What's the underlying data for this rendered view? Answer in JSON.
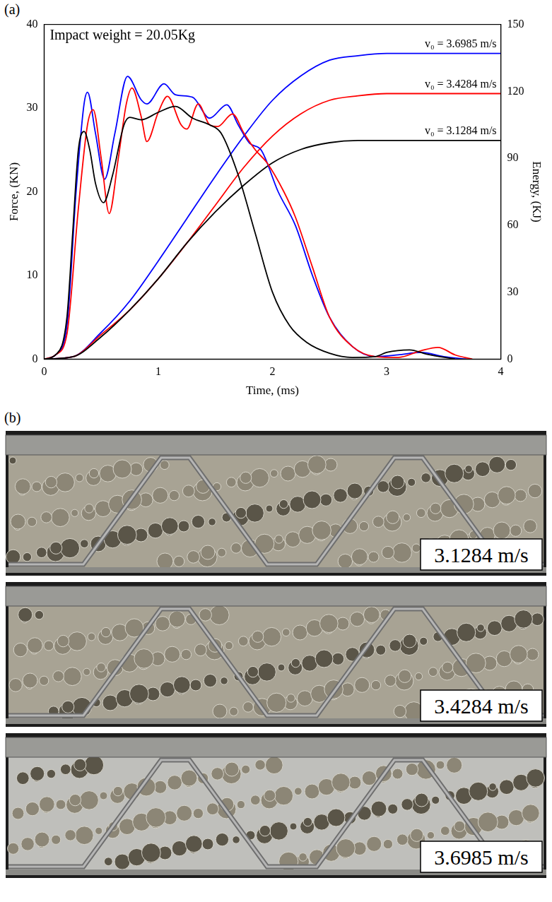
{
  "panel_labels": [
    "(a)",
    "(b)"
  ],
  "chart_data": {
    "type": "line",
    "annotations": [
      "Impact weight = 20.05Kg"
    ],
    "x_label": "Time, (ms)",
    "y_label": "Force, (KN)",
    "y2_label": "Energy, (KJ)",
    "xlim": [
      0,
      4
    ],
    "xticks": [
      0,
      1,
      2,
      3,
      4
    ],
    "ylim": [
      0,
      40
    ],
    "yticks": [
      0,
      10,
      20,
      30,
      40
    ],
    "y2lim": [
      0,
      150
    ],
    "y2ticks": [
      0,
      30,
      60,
      90,
      120,
      150
    ],
    "grid": false,
    "series": [
      {
        "color": "#000000",
        "axis": "y",
        "x": [
          0,
          0.1,
          0.2,
          0.25,
          0.3,
          0.35,
          0.4,
          0.45,
          0.52,
          0.6,
          0.7,
          0.75,
          0.85,
          1.0,
          1.15,
          1.3,
          1.45,
          1.55,
          1.7,
          1.85,
          2.0,
          2.15,
          2.3,
          2.5,
          2.7,
          2.9,
          3.0,
          3.2,
          3.35,
          3.6
        ],
        "values": [
          0,
          0.5,
          5,
          15,
          25,
          27.2,
          25,
          21,
          18.7,
          22,
          28,
          28.9,
          28.6,
          29.5,
          30.2,
          28.8,
          28,
          27,
          22,
          15,
          8,
          4,
          2,
          0.7,
          0.2,
          0.3,
          0.8,
          1.1,
          0.6,
          0
        ]
      },
      {
        "color": "#ff0000",
        "axis": "y",
        "x": [
          0,
          0.1,
          0.2,
          0.3,
          0.38,
          0.43,
          0.5,
          0.57,
          0.65,
          0.72,
          0.77,
          0.85,
          0.9,
          1.0,
          1.08,
          1.2,
          1.25,
          1.35,
          1.45,
          1.52,
          1.65,
          1.75,
          1.85,
          1.95,
          2.1,
          2.2,
          2.35,
          2.5,
          2.7,
          2.9,
          3.1,
          3.3,
          3.45,
          3.6,
          3.75
        ],
        "values": [
          0,
          0.5,
          3,
          18,
          28,
          29.8,
          24,
          17.4,
          24,
          30.5,
          32.4,
          29,
          26,
          29.5,
          31.4,
          28,
          27.5,
          30.5,
          28,
          27.8,
          29.3,
          27,
          25,
          23.5,
          20,
          17,
          11,
          5,
          1.5,
          0.3,
          0.2,
          1,
          1.4,
          0.5,
          0
        ]
      },
      {
        "color": "#0000ff",
        "axis": "y",
        "x": [
          0,
          0.1,
          0.2,
          0.28,
          0.35,
          0.38,
          0.45,
          0.53,
          0.62,
          0.73,
          0.85,
          0.9,
          1.05,
          1.15,
          1.3,
          1.45,
          1.6,
          1.7,
          1.8,
          1.9,
          2.05,
          2.2,
          2.35,
          2.5,
          2.7,
          2.9,
          3.1,
          3.3,
          3.5,
          3.7
        ],
        "values": [
          0,
          0.5,
          4,
          20,
          30.5,
          31.9,
          27,
          21.5,
          27,
          33.8,
          31,
          30.5,
          32.9,
          31.6,
          31.3,
          28.8,
          30.4,
          28,
          25.8,
          25,
          20,
          16,
          10,
          5,
          1.5,
          0.3,
          0.5,
          0.8,
          0.3,
          0
        ]
      },
      {
        "name": "v₀ = 3.1284 m/s",
        "color": "#000000",
        "axis": "y2",
        "x": [
          0,
          0.25,
          0.5,
          0.75,
          1.0,
          1.25,
          1.5,
          1.75,
          2.0,
          2.25,
          2.5,
          2.75,
          3.0,
          4.0
        ],
        "values": [
          0,
          1,
          10,
          22,
          36,
          52,
          66,
          78,
          88,
          94,
          97,
          98,
          98,
          98
        ]
      },
      {
        "name": "v₀ = 3.4284 m/s",
        "color": "#ff0000",
        "axis": "y2",
        "x": [
          0,
          0.25,
          0.5,
          0.75,
          1.0,
          1.25,
          1.5,
          1.75,
          2.0,
          2.25,
          2.5,
          2.75,
          3.0,
          4.0
        ],
        "values": [
          0,
          1,
          11,
          22,
          36,
          52,
          69,
          86,
          100,
          110,
          116,
          118,
          119,
          119
        ]
      },
      {
        "name": "v₀ = 3.6985 m/s",
        "color": "#0000ff",
        "axis": "y2",
        "x": [
          0,
          0.25,
          0.5,
          0.75,
          1.0,
          1.25,
          1.5,
          1.75,
          2.0,
          2.25,
          2.5,
          2.75,
          3.0,
          4.0
        ],
        "values": [
          0,
          1,
          12,
          26,
          44,
          63,
          82,
          100,
          116,
          127,
          134,
          136,
          137,
          137
        ]
      }
    ]
  },
  "specimens": [
    {
      "label": "3.1284 m/s"
    },
    {
      "label": "3.4284 m/s"
    },
    {
      "label": "3.6985 m/s"
    }
  ]
}
